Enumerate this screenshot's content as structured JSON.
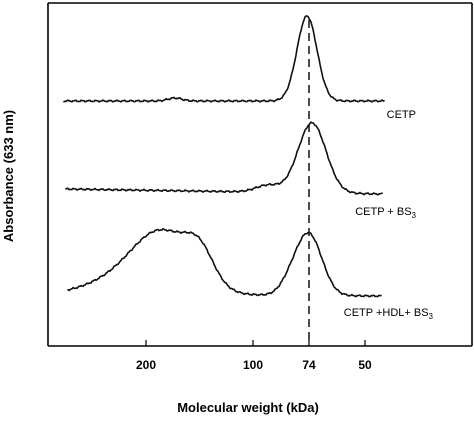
{
  "chart_data": {
    "type": "line",
    "xlabel": "Molecular weight (kDa)",
    "ylabel": "Absorbance (633 nm)",
    "x_ticks": [
      "200",
      "100",
      "74",
      "50"
    ],
    "reference_line": {
      "at": "74",
      "style": "dashed"
    },
    "series": [
      {
        "name": "CETP",
        "label_main": "CETP",
        "label_sub": "",
        "peaks": [
          {
            "mw_kDa": 170,
            "relative_height": 0.05
          },
          {
            "mw_kDa": 74,
            "relative_height": 1.0
          }
        ]
      },
      {
        "name": "CETP + BS3",
        "label_main": "CETP + BS",
        "label_sub": "3",
        "peaks": [
          {
            "mw_kDa": 74,
            "relative_height": 0.85
          }
        ]
      },
      {
        "name": "CETP +HDL+ BS3",
        "label_main": "CETP +HDL+ BS",
        "label_sub": "3",
        "peaks": [
          {
            "mw_kDa": 180,
            "relative_height": 0.95
          },
          {
            "mw_kDa": 74,
            "relative_height": 0.85
          }
        ]
      }
    ],
    "grid": false,
    "legend": "none"
  }
}
